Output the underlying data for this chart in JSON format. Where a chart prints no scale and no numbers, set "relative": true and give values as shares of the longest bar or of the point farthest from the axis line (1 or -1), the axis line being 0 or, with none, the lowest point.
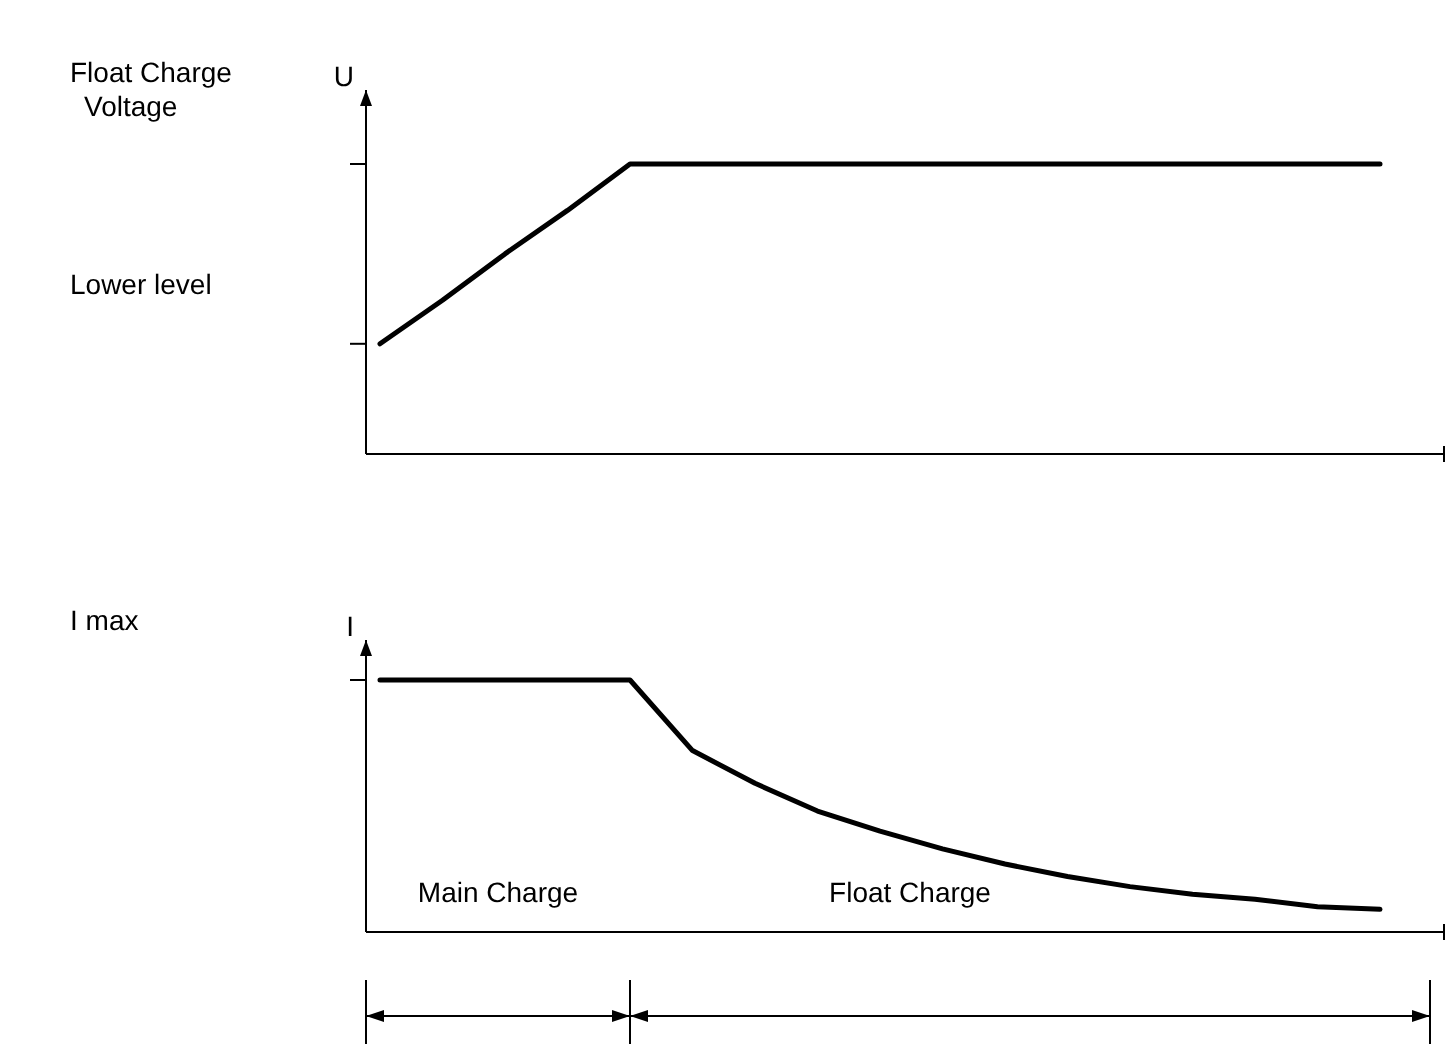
{
  "chart_data": [
    {
      "type": "line",
      "relative": true,
      "ylabel": "U",
      "categories": [
        null,
        null,
        null,
        null,
        null,
        null,
        null,
        null,
        null,
        null,
        null,
        null,
        null,
        null,
        null,
        null,
        null
      ],
      "series": [
        {
          "color": "#000000",
          "values": [
            0.38,
            0.53,
            0.69,
            0.84,
            1,
            1,
            1,
            1,
            1,
            1,
            1,
            1,
            1,
            1,
            1,
            1,
            1
          ]
        }
      ],
      "annotations": [
        "Float Charge Voltage",
        "Lower level"
      ]
    },
    {
      "type": "line",
      "relative": true,
      "ylabel": "I",
      "categories": [
        null,
        null,
        null,
        null,
        null,
        null,
        null,
        null,
        null,
        null,
        null,
        null,
        null,
        null,
        null,
        null,
        null
      ],
      "series": [
        {
          "color": "#000000",
          "values": [
            1,
            1,
            1,
            1,
            1,
            0.72,
            0.59,
            0.48,
            0.4,
            0.33,
            0.27,
            0.22,
            0.18,
            0.15,
            0.13,
            0.1,
            0.09
          ]
        }
      ],
      "annotations": [
        "I max",
        "Main Charge",
        "Float Charge"
      ]
    }
  ]
}
